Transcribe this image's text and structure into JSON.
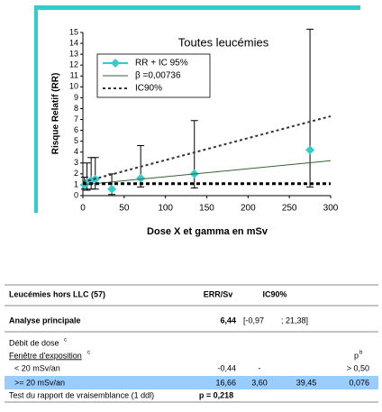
{
  "chart_data": {
    "type": "scatter",
    "title": "Toutes leucémies",
    "x_label": "Dose X et gamma en mSv",
    "y_label": "Risque Relatif (RR)",
    "xlim": [
      0,
      300
    ],
    "ylim": [
      0,
      15
    ],
    "xticks": [
      0,
      50,
      100,
      150,
      200,
      250,
      300
    ],
    "yticks": [
      0,
      1,
      2,
      3,
      4,
      5,
      6,
      7,
      8,
      9,
      10,
      11,
      12,
      13,
      14,
      15
    ],
    "series": [
      {
        "name": "RR + IC 95%",
        "color": "#33cccc",
        "x": [
          2,
          5,
          10,
          15,
          35,
          70,
          135,
          275
        ],
        "values": [
          1.0,
          1.2,
          1.4,
          1.5,
          0.6,
          1.6,
          2.0,
          4.2
        ],
        "lower": [
          0.6,
          0.5,
          0.6,
          0.6,
          0.1,
          0.8,
          0.7,
          0.8
        ],
        "upper": [
          1.7,
          3.0,
          3.5,
          3.5,
          2.0,
          4.6,
          6.9,
          15.3
        ]
      },
      {
        "name": "β =0,00736",
        "type": "line",
        "color": "#336633",
        "dash": "none",
        "width": 1,
        "x": [
          0,
          300
        ],
        "values": [
          1,
          3.21
        ]
      },
      {
        "name": "IC90%",
        "type": "line",
        "color": "#333333",
        "dash": "3,3",
        "width": 2,
        "x": [
          0,
          300
        ],
        "values": [
          1.25,
          7.3
        ]
      },
      {
        "type": "line",
        "color": "#000000",
        "dash": "4,3",
        "width": 3,
        "x": [
          0,
          300
        ],
        "values": [
          1.1,
          1.1
        ]
      }
    ]
  },
  "table": {
    "header": [
      "Leucémies hors LLC (57)",
      "ERR/Sv",
      "IC90%"
    ],
    "rows": [
      {
        "label": "Analyse principale",
        "err": "6,44",
        "ic_low": "[-0,97",
        "ic_high": "; 21,38]"
      },
      {
        "label": "Débit de dose",
        "sup": "c"
      },
      {
        "label": "Fenêtre d'exposition",
        "sup": "c",
        "p": "p",
        "p_sup": "b"
      },
      {
        "label": "< 20 mSv/an",
        "err": "-0,44",
        "ic_low": "-",
        "p": "> 0,50"
      },
      {
        "label": ">= 20 mSv/an",
        "err": "16,66",
        "ic_low": "3,60",
        "ic_high": "39,45",
        "p": "0,076"
      },
      {
        "label": "Test du rapport de vraisemblance (1 ddl)",
        "err": "p = 0,218"
      }
    ]
  }
}
